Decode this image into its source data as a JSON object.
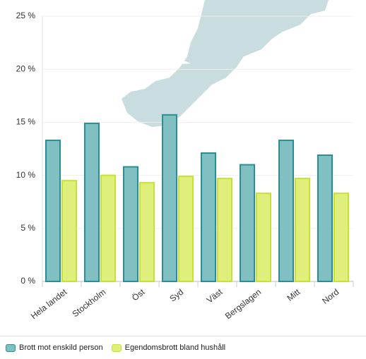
{
  "chart_data": {
    "type": "bar",
    "categories": [
      "Hela landet",
      "Stockholm",
      "Öst",
      "Syd",
      "Väst",
      "Bergslagen",
      "Mitt",
      "Nord"
    ],
    "series": [
      {
        "name": "Brott mot enskild person",
        "color": "#80bfc2",
        "edgecolor": "#2a8f94",
        "values": [
          13.3,
          14.9,
          10.8,
          15.7,
          12.1,
          11.0,
          13.3,
          11.9
        ]
      },
      {
        "name": "Egendomsbrott bland hushåll",
        "color": "#e0ee7c",
        "edgecolor": "#c6e234",
        "values": [
          9.5,
          10.0,
          9.3,
          9.9,
          9.7,
          8.3,
          9.7,
          8.3
        ]
      }
    ],
    "ylim": [
      0,
      25
    ],
    "yticks": [
      {
        "value": 0,
        "label": "0 %"
      },
      {
        "value": 5,
        "label": "5 %"
      },
      {
        "value": 10,
        "label": "10 %"
      },
      {
        "value": 15,
        "label": "15 %"
      },
      {
        "value": 20,
        "label": "20 %"
      },
      {
        "value": 25,
        "label": "25 %"
      }
    ],
    "grid": true,
    "legend": "bottom"
  }
}
